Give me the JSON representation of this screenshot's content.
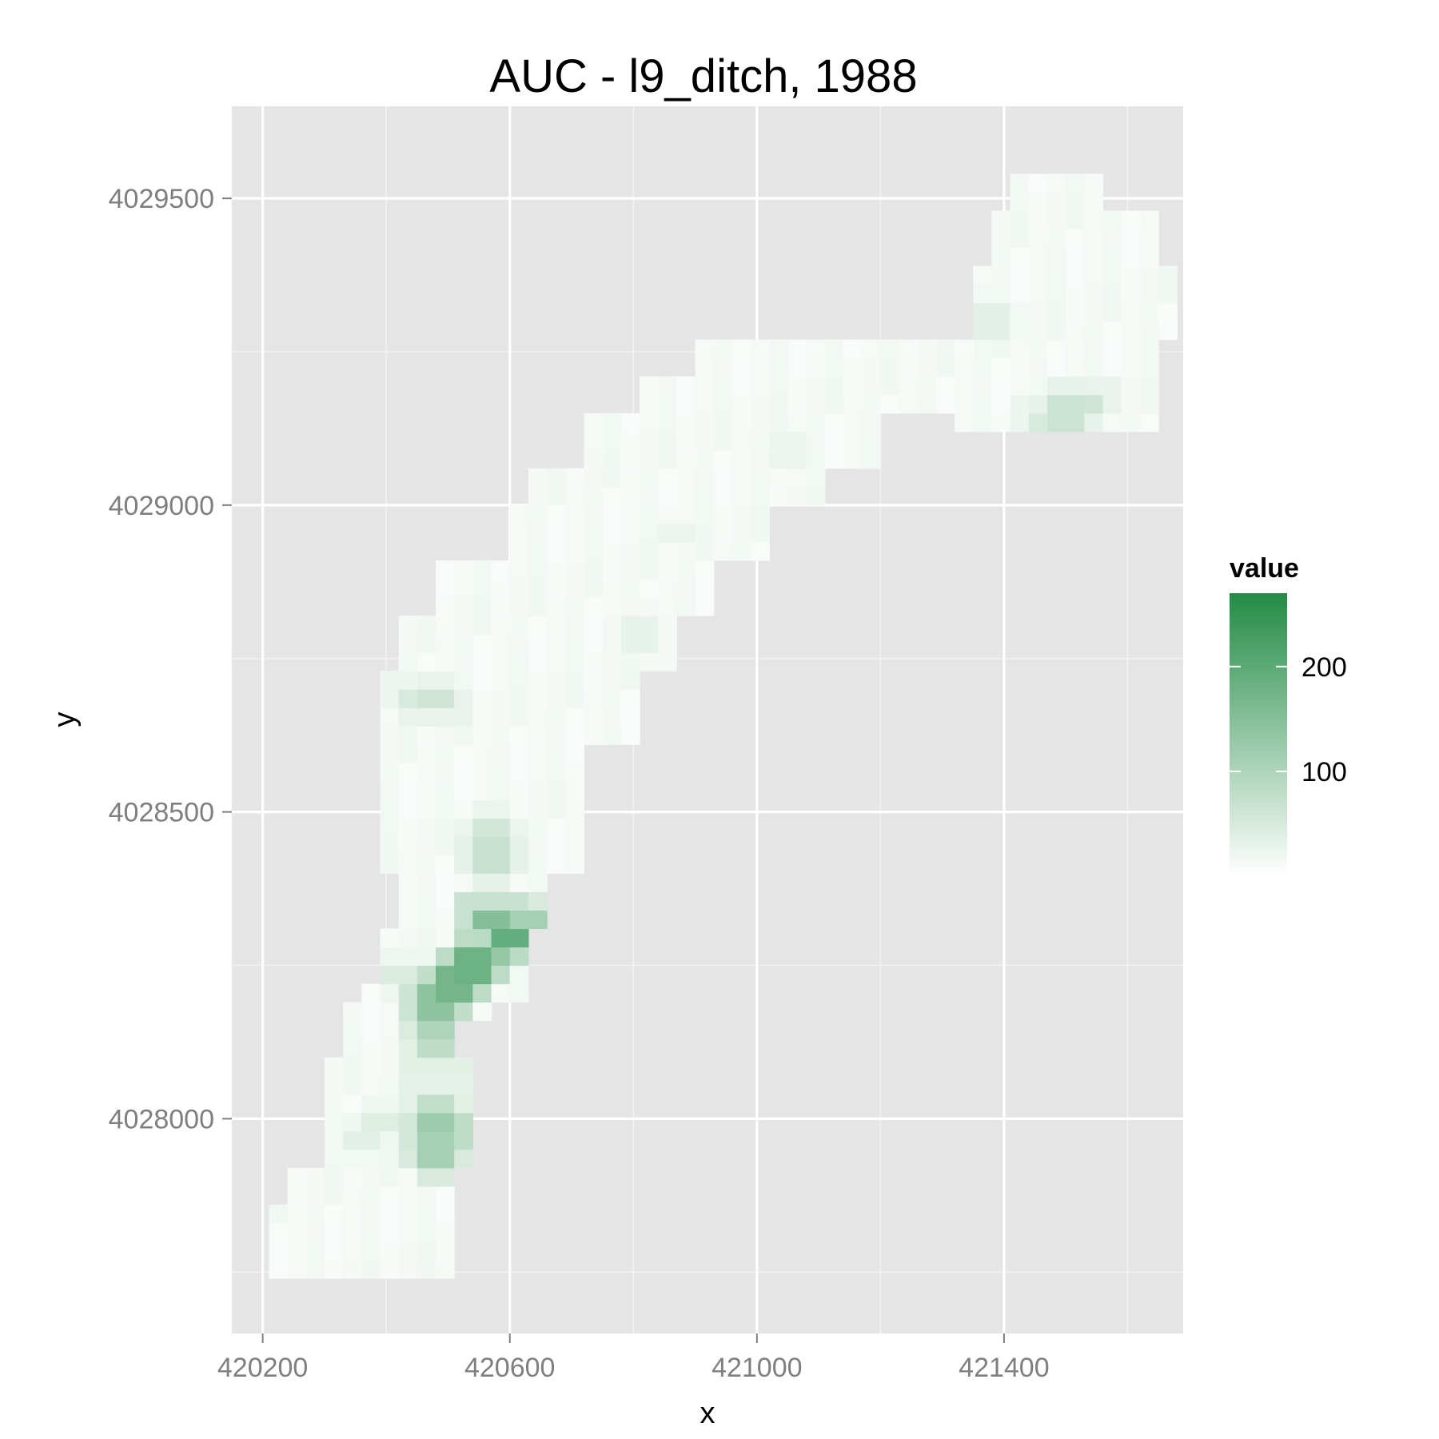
{
  "chart_data": {
    "type": "heatmap",
    "title": "AUC - l9_ditch, 1988",
    "xlabel": "x",
    "ylabel": "y",
    "xlim": [
      420150,
      421690
    ],
    "ylim": [
      4027650,
      4029650
    ],
    "xticks": [
      420200,
      420600,
      421000,
      421400
    ],
    "yticks": [
      4028000,
      4028500,
      4029000,
      4029500
    ],
    "grid": true,
    "cell_size": 30,
    "colorscale": {
      "name": "value",
      "low_color": "#ffffff",
      "high_color": "#238b45",
      "range": [
        0,
        270
      ],
      "ticks": [
        100,
        200
      ]
    },
    "footprint": [
      {
        "x0": 420220,
        "x1": 420400,
        "y0": 4027740,
        "y1": 4027860
      },
      {
        "x0": 420370,
        "x1": 420520,
        "y0": 4027730,
        "y1": 4027860
      },
      {
        "x0": 420250,
        "x1": 420520,
        "y0": 4027850,
        "y1": 4027930
      },
      {
        "x0": 420300,
        "x1": 420550,
        "y0": 4027930,
        "y1": 4028100
      },
      {
        "x0": 420330,
        "x1": 420520,
        "y0": 4028100,
        "y1": 4028180
      },
      {
        "x0": 420360,
        "x1": 420580,
        "y0": 4028150,
        "y1": 4028220
      },
      {
        "x0": 420390,
        "x1": 420630,
        "y0": 4028200,
        "y1": 4028300
      },
      {
        "x0": 420420,
        "x1": 420660,
        "y0": 4028300,
        "y1": 4028400
      },
      {
        "x0": 420390,
        "x1": 420720,
        "y0": 4028400,
        "y1": 4028600
      },
      {
        "x0": 420390,
        "x1": 420810,
        "y0": 4028600,
        "y1": 4028740
      },
      {
        "x0": 420420,
        "x1": 420870,
        "y0": 4028740,
        "y1": 4028820
      },
      {
        "x0": 420490,
        "x1": 420930,
        "y0": 4028820,
        "y1": 4028900
      },
      {
        "x0": 420600,
        "x1": 421020,
        "y0": 4028900,
        "y1": 4028990
      },
      {
        "x0": 420640,
        "x1": 421100,
        "y0": 4028990,
        "y1": 4029070
      },
      {
        "x0": 420730,
        "x1": 421190,
        "y0": 4029070,
        "y1": 4029140
      },
      {
        "x0": 420820,
        "x1": 421380,
        "y0": 4029140,
        "y1": 4029200
      },
      {
        "x0": 420910,
        "x1": 421450,
        "y0": 4029200,
        "y1": 4029280
      },
      {
        "x0": 421330,
        "x1": 421650,
        "y0": 4029120,
        "y1": 4029280
      },
      {
        "x0": 421360,
        "x1": 421670,
        "y0": 4029280,
        "y1": 4029380
      },
      {
        "x0": 421390,
        "x1": 421650,
        "y0": 4029380,
        "y1": 4029480
      },
      {
        "x0": 421400,
        "x1": 421570,
        "y0": 4029480,
        "y1": 4029550
      }
    ],
    "hotspots": [
      {
        "x": 420600,
        "y": 4028300,
        "value": 190
      },
      {
        "x": 420570,
        "y": 4028330,
        "value": 150
      },
      {
        "x": 420630,
        "y": 4028330,
        "value": 110
      },
      {
        "x": 420540,
        "y": 4028250,
        "value": 180
      },
      {
        "x": 420510,
        "y": 4028220,
        "value": 170
      },
      {
        "x": 420480,
        "y": 4028190,
        "value": 140
      },
      {
        "x": 420570,
        "y": 4028270,
        "value": 130
      },
      {
        "x": 420480,
        "y": 4028150,
        "value": 100
      },
      {
        "x": 420480,
        "y": 4028110,
        "value": 80
      },
      {
        "x": 420480,
        "y": 4027990,
        "value": 120
      },
      {
        "x": 420480,
        "y": 4027950,
        "value": 110
      },
      {
        "x": 420510,
        "y": 4027980,
        "value": 80
      },
      {
        "x": 420480,
        "y": 4028030,
        "value": 75
      },
      {
        "x": 420570,
        "y": 4028430,
        "value": 70
      },
      {
        "x": 420570,
        "y": 4028470,
        "value": 55
      },
      {
        "x": 420480,
        "y": 4028680,
        "value": 60
      },
      {
        "x": 420450,
        "y": 4028690,
        "value": 50
      },
      {
        "x": 421530,
        "y": 4029170,
        "value": 60
      },
      {
        "x": 421500,
        "y": 4029150,
        "value": 65
      },
      {
        "x": 421470,
        "y": 4029140,
        "value": 50
      },
      {
        "x": 421380,
        "y": 4029300,
        "value": 35
      },
      {
        "x": 420810,
        "y": 4028790,
        "value": 30
      },
      {
        "x": 420870,
        "y": 4028960,
        "value": 25
      },
      {
        "x": 421050,
        "y": 4029090,
        "value": 25
      },
      {
        "x": 420420,
        "y": 4028240,
        "value": 45
      },
      {
        "x": 420390,
        "y": 4027990,
        "value": 40
      },
      {
        "x": 420360,
        "y": 4027970,
        "value": 35
      }
    ]
  }
}
